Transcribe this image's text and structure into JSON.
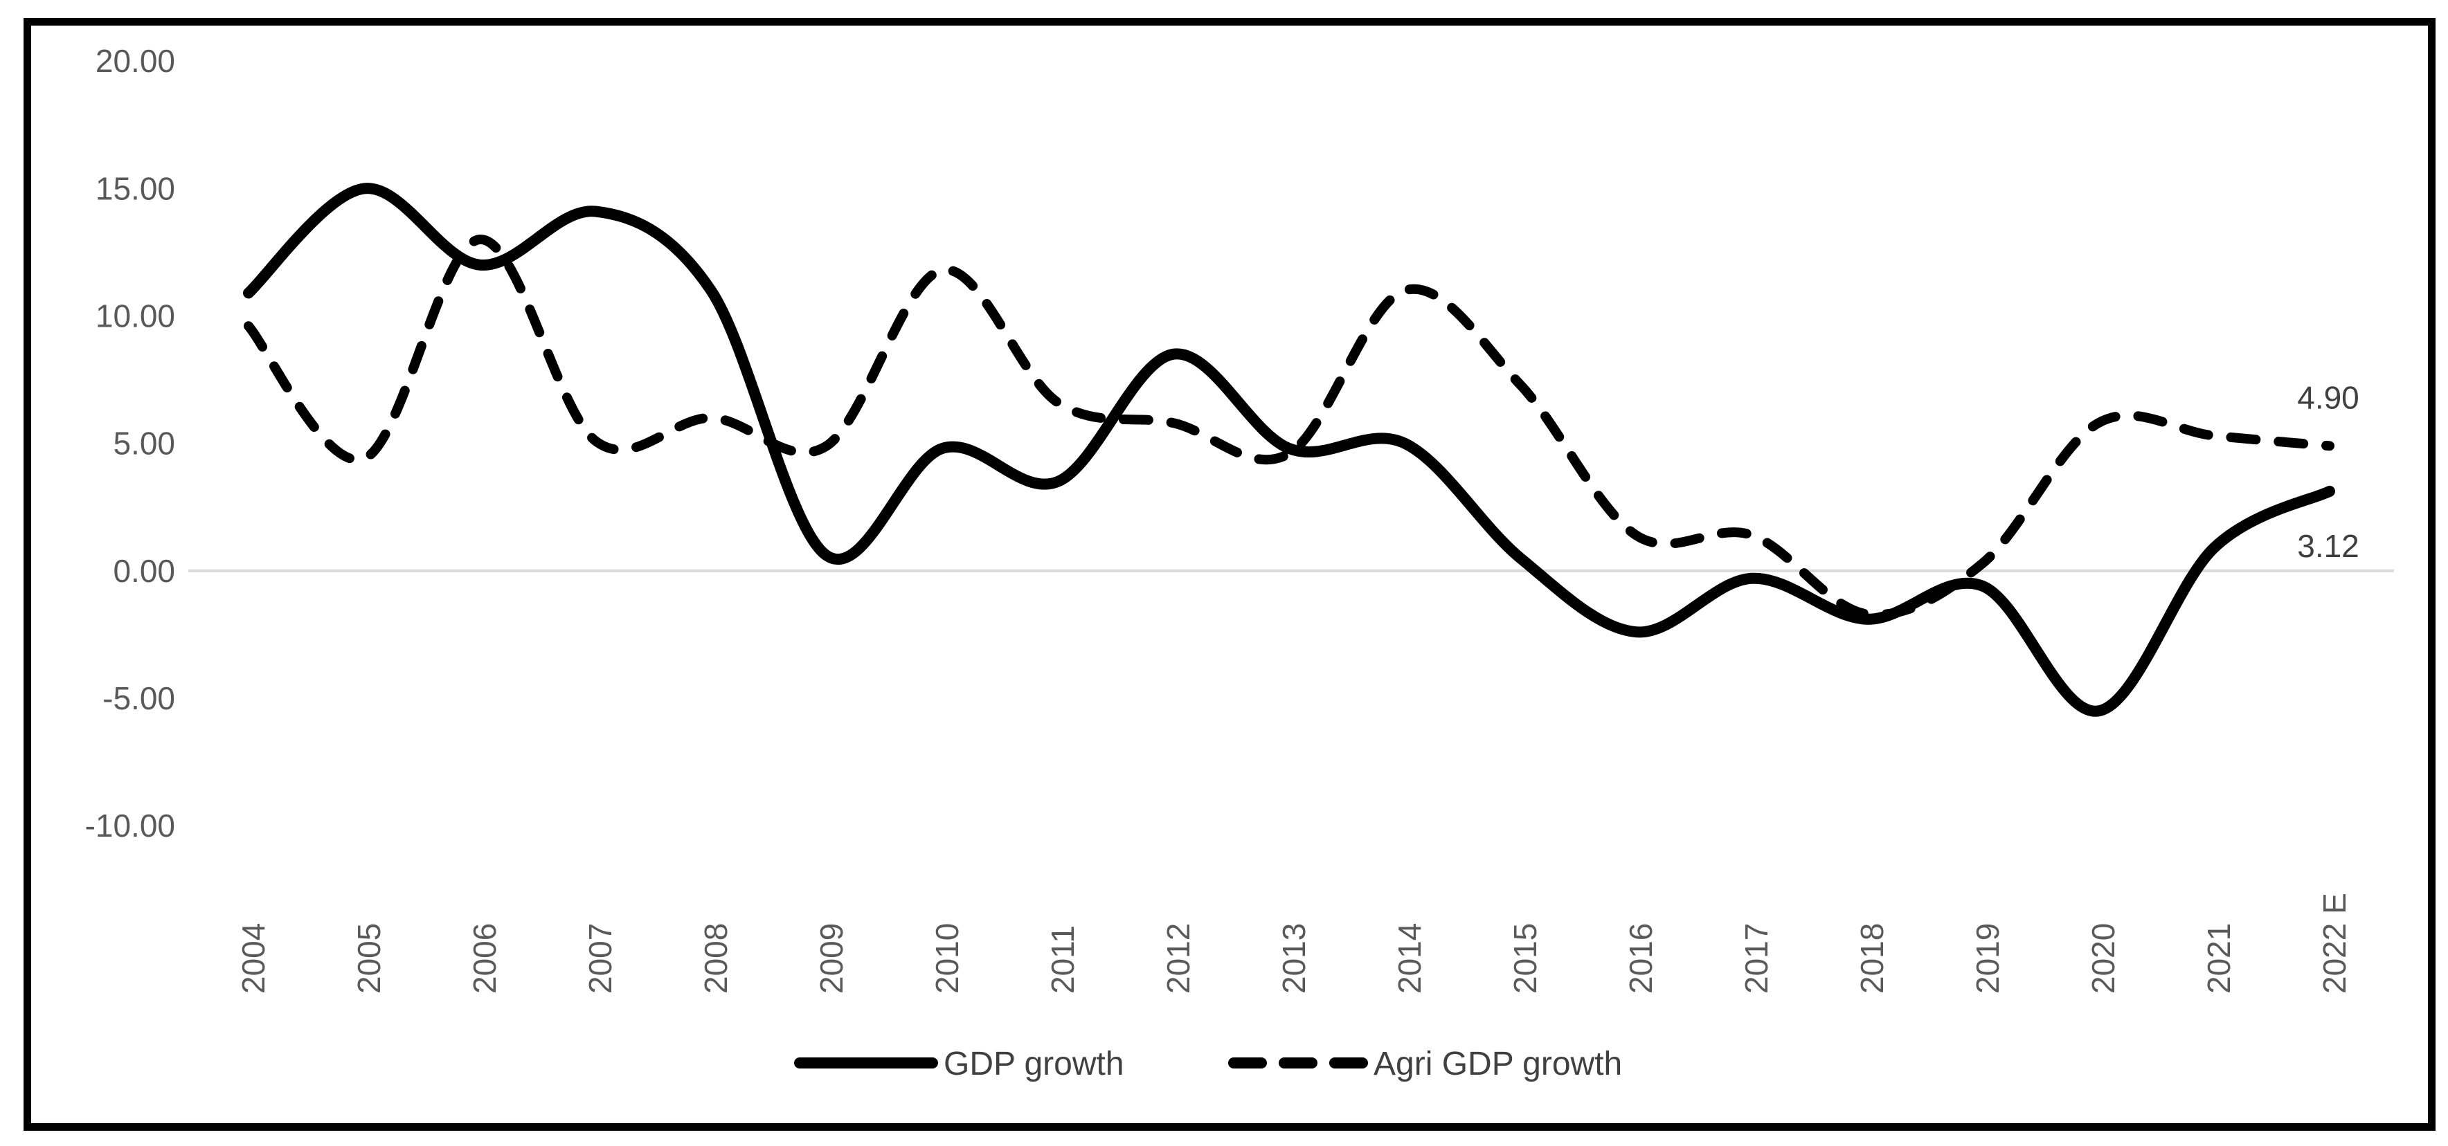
{
  "figure": {
    "background_color": "#ffffff",
    "border_color": "#000000",
    "line_color": "#000000",
    "gridline_color": "#d9d9d9",
    "axis_label_color": "#595959",
    "data_label_color": "#404040",
    "legend_text_color": "#404040"
  },
  "chart_data": {
    "type": "line",
    "title": "",
    "xlabel": "",
    "ylabel": "",
    "categories": [
      "2004",
      "2005",
      "2006",
      "2007",
      "2008",
      "2009",
      "2010",
      "2011",
      "2012",
      "2013",
      "2014",
      "2015",
      "2016",
      "2017",
      "2018",
      "2019",
      "2020",
      "2021",
      "2022 E"
    ],
    "series": [
      {
        "name": "GDP growth",
        "style": "solid",
        "values": [
          10.9,
          15.0,
          12.0,
          14.1,
          11.0,
          0.6,
          4.8,
          3.5,
          8.5,
          4.8,
          5.0,
          0.5,
          -2.4,
          -0.3,
          -1.9,
          -0.6,
          -5.5,
          0.9,
          3.12
        ]
      },
      {
        "name": "Agri GDP growth",
        "style": "dashed",
        "values": [
          9.6,
          4.4,
          13.0,
          5.1,
          6.0,
          4.9,
          11.8,
          6.6,
          5.8,
          4.6,
          11.0,
          7.3,
          1.4,
          1.4,
          -1.7,
          0.3,
          5.8,
          5.3,
          4.9
        ]
      }
    ],
    "end_labels": [
      {
        "series": "Agri GDP growth",
        "text": "4.90"
      },
      {
        "series": "GDP growth",
        "text": "3.12"
      }
    ],
    "y_axis": {
      "min": -10,
      "max": 20,
      "step": 5,
      "tick_labels": [
        "20.00",
        "15.00",
        "10.00",
        "5.00",
        "0.00",
        "-5.00",
        "-10.00"
      ]
    },
    "x_axis": {
      "rotation": -90
    },
    "gridlines": {
      "only_zero_line": true
    },
    "legend": {
      "position": "bottom",
      "entries": [
        {
          "label": "GDP growth",
          "swatch": "solid"
        },
        {
          "label": "Agri GDP growth",
          "swatch": "dashed"
        }
      ]
    },
    "smooth": true
  }
}
